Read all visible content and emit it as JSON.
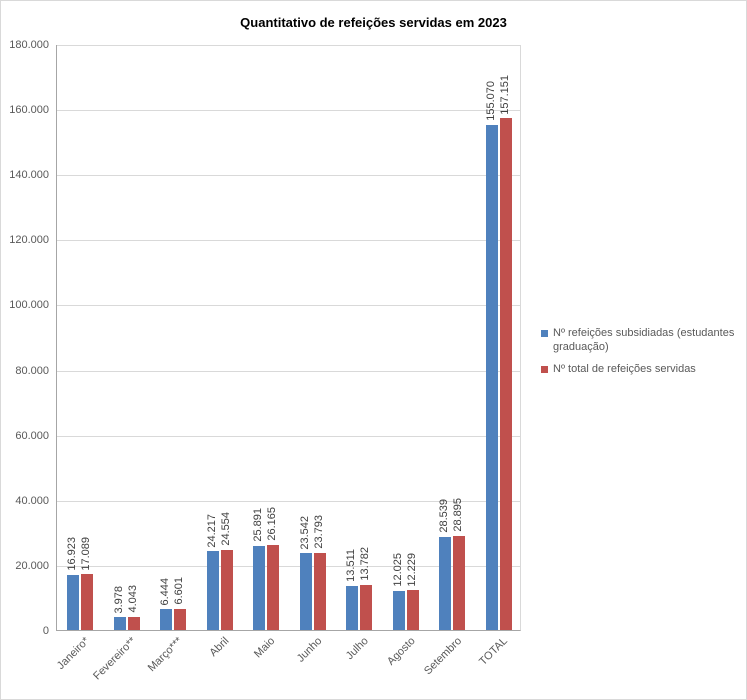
{
  "title": "Quantitativo de refeições servidas em 2023",
  "chart_data": {
    "type": "bar",
    "categories": [
      "Janeiro*",
      "Fevereiro**",
      "Março***",
      "Abril",
      "Maio",
      "Junho",
      "Julho",
      "Agosto",
      "Setembro",
      "TOTAL"
    ],
    "series": [
      {
        "name": "Nº refeições subsidiadas (estudantes graduação)",
        "color": "#4F81BD",
        "values": [
          16923,
          3978,
          6444,
          24217,
          25891,
          23542,
          13511,
          12025,
          28539,
          155070
        ]
      },
      {
        "name": "Nº total de refeições servidas",
        "color": "#C0504D",
        "values": [
          17089,
          4043,
          6601,
          24554,
          26165,
          23793,
          13782,
          12229,
          28895,
          157151
        ]
      }
    ],
    "xlabel": "",
    "ylabel": "",
    "ylim": [
      0,
      180000
    ],
    "yticks": [
      0,
      20000,
      40000,
      60000,
      80000,
      100000,
      120000,
      140000,
      160000,
      180000
    ],
    "grid": true,
    "legend_position": "right",
    "data_labels": true,
    "number_format": "thousands-dot"
  }
}
